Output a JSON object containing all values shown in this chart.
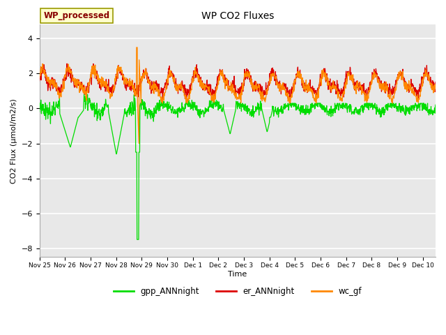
{
  "title": "WP CO2 Fluxes",
  "xlabel": "Time",
  "ylabel": "CO2 Flux (μmol/m2/s)",
  "ylim": [
    -8.5,
    4.8
  ],
  "yticks": [
    -8,
    -6,
    -4,
    -2,
    0,
    2,
    4
  ],
  "fig_bg_color": "#ffffff",
  "plot_bg": "#e8e8e8",
  "grid_color": "#ffffff",
  "label_box": "WP_processed",
  "label_box_facecolor": "#ffffcc",
  "label_box_edgecolor": "#999900",
  "label_box_text_color": "#880000",
  "line_colors": {
    "gpp": "#00dd00",
    "er": "#dd0000",
    "wc": "#ff8800"
  },
  "legend_labels": [
    "gpp_ANNnight",
    "er_ANNnight",
    "wc_gf"
  ],
  "n_days": 15.5,
  "n_points": 1488,
  "xtick_labels": [
    "Nov 25",
    "Nov 26",
    "Nov 27",
    "Nov 28",
    "Nov 29",
    "Nov 30",
    "Dec 1",
    "Dec 2",
    "Dec 3",
    "Dec 4",
    "Dec 5",
    "Dec 6",
    "Dec 7",
    "Dec 8",
    "Dec 9",
    "Dec 10"
  ],
  "xtick_positions": [
    0,
    1,
    2,
    3,
    4,
    5,
    6,
    7,
    8,
    9,
    10,
    11,
    12,
    13,
    14,
    15
  ]
}
